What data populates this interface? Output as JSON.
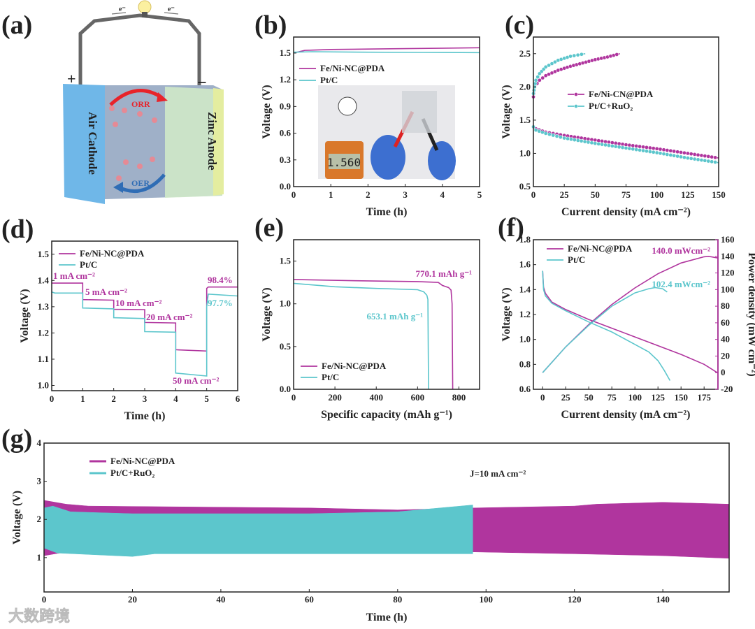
{
  "panel_labels": [
    "(a)",
    "(b)",
    "(c)",
    "(d)",
    "(e)",
    "(f)",
    "(g)"
  ],
  "diagram_a": {
    "cathode_label": "Air Cathode",
    "anode_label": "Zinc Anode",
    "orr_label": "ORR",
    "oer_label": "OER",
    "electron_label": "e⁻",
    "plus_label": "+",
    "minus_label": "−",
    "colors": {
      "cathode": "#6fb7e8",
      "anode": "#cfe9c8",
      "orr": "#e8232a",
      "oer": "#2f6db5"
    }
  },
  "inset_b": {
    "meter_reading": "1.560"
  },
  "watermark": "大数跨境",
  "colors": {
    "fe": "#b0359e",
    "pt": "#5cc6cc"
  },
  "chart_data": [
    {
      "id": "b",
      "type": "line",
      "xlabel": "Time (h)",
      "ylabel": "Voltage (V)",
      "xlim": [
        0,
        5
      ],
      "ylim": [
        0,
        1.68
      ],
      "xticks": [
        0,
        1,
        2,
        3,
        4,
        5
      ],
      "xtick_labels": [
        "0",
        "1",
        "2",
        "3",
        "4",
        "5"
      ],
      "yticks": [
        0,
        0.3,
        0.6,
        0.9,
        1.2,
        1.5
      ],
      "ytick_labels": [
        "0.0",
        "0.3",
        "0.6",
        "0.9",
        "1.2",
        "1.5"
      ],
      "legend": "upper-left",
      "series": [
        {
          "name": "Fe/Ni-NC@PDA",
          "color": "#b0359e",
          "points": [
            [
              0,
              1.5
            ],
            [
              0.3,
              1.53
            ],
            [
              1,
              1.54
            ],
            [
              2,
              1.545
            ],
            [
              3,
              1.55
            ],
            [
              5,
              1.56
            ]
          ]
        },
        {
          "name": "Pt/C",
          "color": "#5cc6cc",
          "points": [
            [
              0,
              1.51
            ],
            [
              0.5,
              1.515
            ],
            [
              2,
              1.51
            ],
            [
              3.5,
              1.507
            ],
            [
              5,
              1.505
            ]
          ]
        }
      ],
      "annotations": []
    },
    {
      "id": "c",
      "type": "line",
      "xlabel": "Current density (mA cm⁻²)",
      "ylabel": "Voltage (V)",
      "xlim": [
        0,
        150
      ],
      "ylim": [
        0.5,
        2.75
      ],
      "xticks": [
        0,
        25,
        50,
        75,
        100,
        125,
        150
      ],
      "xtick_labels": [
        "0",
        "25",
        "50",
        "75",
        "100",
        "125",
        "150"
      ],
      "yticks": [
        0.5,
        1.0,
        1.5,
        2.0,
        2.5
      ],
      "ytick_labels": [
        "0.5",
        "1.0",
        "1.5",
        "2.0",
        "2.5"
      ],
      "legend": "center",
      "markers": true,
      "series": [
        {
          "name": "Fe/Ni-CN@PDA",
          "color": "#b0359e",
          "segments": [
            [
              [
                0,
                1.85
              ],
              [
                1,
                2.0
              ],
              [
                5,
                2.1
              ],
              [
                10,
                2.17
              ],
              [
                20,
                2.25
              ],
              [
                30,
                2.31
              ],
              [
                40,
                2.36
              ],
              [
                50,
                2.41
              ],
              [
                60,
                2.45
              ],
              [
                70,
                2.5
              ]
            ],
            [
              [
                0,
                1.4
              ],
              [
                2,
                1.37
              ],
              [
                10,
                1.32
              ],
              [
                25,
                1.27
              ],
              [
                50,
                1.2
              ],
              [
                75,
                1.13
              ],
              [
                100,
                1.07
              ],
              [
                125,
                1.0
              ],
              [
                150,
                0.93
              ]
            ]
          ]
        },
        {
          "name": "Pt/C+RuO₂",
          "color": "#5cc6cc",
          "segments": [
            [
              [
                0,
                1.9
              ],
              [
                2,
                2.1
              ],
              [
                5,
                2.2
              ],
              [
                10,
                2.3
              ],
              [
                20,
                2.4
              ],
              [
                30,
                2.46
              ],
              [
                42,
                2.5
              ]
            ],
            [
              [
                0,
                1.4
              ],
              [
                2,
                1.35
              ],
              [
                10,
                1.3
              ],
              [
                25,
                1.23
              ],
              [
                50,
                1.15
              ],
              [
                75,
                1.08
              ],
              [
                100,
                1.01
              ],
              [
                125,
                0.93
              ],
              [
                150,
                0.86
              ]
            ]
          ]
        }
      ],
      "annotations": []
    },
    {
      "id": "d",
      "type": "line",
      "xlabel": "Time (h)",
      "ylabel": "Voltage (V)",
      "xlim": [
        0,
        6
      ],
      "ylim": [
        0.98,
        1.55
      ],
      "xticks": [
        0,
        1,
        2,
        3,
        4,
        5,
        6
      ],
      "xtick_labels": [
        "0",
        "1",
        "2",
        "3",
        "4",
        "5",
        "6"
      ],
      "yticks": [
        1.0,
        1.1,
        1.2,
        1.3,
        1.4,
        1.5
      ],
      "ytick_labels": [
        "1.0",
        "1.1",
        "1.2",
        "1.3",
        "1.4",
        "1.5"
      ],
      "legend": "upper-left",
      "series": [
        {
          "name": "Fe/Ni-NC@PDA",
          "color": "#b0359e",
          "points": [
            [
              0,
              1.39
            ],
            [
              1,
              1.39
            ],
            [
              1,
              1.327
            ],
            [
              2,
              1.325
            ],
            [
              2,
              1.29
            ],
            [
              3,
              1.289
            ],
            [
              3,
              1.24
            ],
            [
              4,
              1.238
            ],
            [
              4,
              1.136
            ],
            [
              5,
              1.131
            ],
            [
              5,
              1.37
            ],
            [
              5.05,
              1.375
            ],
            [
              6,
              1.375
            ]
          ]
        },
        {
          "name": "Pt/C",
          "color": "#5cc6cc",
          "points": [
            [
              0,
              1.356
            ],
            [
              0.1,
              1.352
            ],
            [
              1,
              1.352
            ],
            [
              1,
              1.295
            ],
            [
              2,
              1.292
            ],
            [
              2,
              1.258
            ],
            [
              3,
              1.255
            ],
            [
              3,
              1.205
            ],
            [
              4,
              1.203
            ],
            [
              4,
              1.047
            ],
            [
              5,
              1.036
            ],
            [
              5,
              1.3
            ],
            [
              5.05,
              1.348
            ],
            [
              6,
              1.341
            ]
          ]
        }
      ],
      "annotations": [
        {
          "text": "1 mA cm⁻²",
          "series": 0
        },
        {
          "text": "5 mA cm⁻²",
          "series": 0
        },
        {
          "text": "10 mA cm⁻²",
          "series": 0
        },
        {
          "text": "20 mA cm⁻²",
          "series": 0
        },
        {
          "text": "50 mA cm⁻²",
          "series": 0
        },
        {
          "text": "98.4%",
          "series": 0
        },
        {
          "text": "97.7%",
          "series": 1
        }
      ]
    },
    {
      "id": "e",
      "type": "line",
      "xlabel": "Specific capacity (mAh g⁻¹)",
      "ylabel": "Voltage (V)",
      "xlim": [
        0,
        900
      ],
      "ylim": [
        0,
        1.75
      ],
      "xticks": [
        0,
        200,
        400,
        600,
        800
      ],
      "xtick_labels": [
        "0",
        "200",
        "400",
        "600",
        "800"
      ],
      "yticks": [
        0,
        0.5,
        1.0,
        1.5
      ],
      "ytick_labels": [
        "0.0",
        "0.5",
        "1.0",
        "1.5"
      ],
      "legend": "lower-left",
      "series": [
        {
          "name": "Fe/Ni-NC@PDA",
          "color": "#b0359e",
          "points": [
            [
              0,
              1.285
            ],
            [
              300,
              1.27
            ],
            [
              600,
              1.26
            ],
            [
              700,
              1.25
            ],
            [
              720,
              1.215
            ],
            [
              750,
              1.19
            ],
            [
              762,
              1.16
            ],
            [
              767,
              1.0
            ],
            [
              770.1,
              0
            ]
          ]
        },
        {
          "name": "Pt/C",
          "color": "#5cc6cc",
          "points": [
            [
              0,
              1.24
            ],
            [
              200,
              1.2
            ],
            [
              400,
              1.18
            ],
            [
              600,
              1.165
            ],
            [
              630,
              1.14
            ],
            [
              645,
              1.1
            ],
            [
              650,
              1.05
            ],
            [
              653.1,
              0
            ]
          ]
        }
      ],
      "annotations": [
        {
          "text": "770.1 mAh g⁻¹",
          "series": 0
        },
        {
          "text": "653.1 mAh g⁻¹",
          "series": 1
        }
      ]
    },
    {
      "id": "f",
      "type": "line",
      "xlabel": "Current density (mA cm⁻²)",
      "ylabel": "Voltage (V)",
      "y2label": "Power density (mW cm⁻²)",
      "xlim": [
        -10,
        190
      ],
      "ylim": [
        0.6,
        1.8
      ],
      "y2lim": [
        -20,
        160
      ],
      "xticks": [
        0,
        25,
        50,
        75,
        100,
        125,
        150,
        175
      ],
      "xtick_labels": [
        "0",
        "25",
        "50",
        "75",
        "100",
        "125",
        "150",
        "175"
      ],
      "yticks": [
        0.6,
        0.8,
        1.0,
        1.2,
        1.4,
        1.6,
        1.8
      ],
      "ytick_labels": [
        "0.6",
        "0.8",
        "1.0",
        "1.2",
        "1.4",
        "1.6",
        "1.8"
      ],
      "y2ticks": [
        -20,
        0,
        20,
        40,
        60,
        80,
        100,
        120,
        140,
        160
      ],
      "y2tick_labels": [
        "-20",
        "0",
        "20",
        "40",
        "60",
        "80",
        "100",
        "120",
        "140",
        "160"
      ],
      "legend": "upper-left",
      "series": [
        {
          "name": "Fe/Ni-NC@PDA",
          "color": "#b0359e",
          "points": [
            [
              0,
              1.55
            ],
            [
              1,
              1.42
            ],
            [
              3,
              1.37
            ],
            [
              10,
              1.3
            ],
            [
              25,
              1.24
            ],
            [
              50,
              1.16
            ],
            [
              75,
              1.09
            ],
            [
              100,
              1.02
            ],
            [
              125,
              0.95
            ],
            [
              150,
              0.88
            ],
            [
              175,
              0.8
            ],
            [
              190,
              0.73
            ]
          ],
          "power": [
            [
              0,
              0
            ],
            [
              25,
              31
            ],
            [
              50,
              58
            ],
            [
              75,
              82
            ],
            [
              100,
              102
            ],
            [
              125,
              119
            ],
            [
              150,
              132
            ],
            [
              175,
              139.5
            ],
            [
              180,
              140
            ],
            [
              190,
              138
            ]
          ]
        },
        {
          "name": "Pt/C",
          "color": "#5cc6cc",
          "points": [
            [
              0,
              1.55
            ],
            [
              1,
              1.4
            ],
            [
              3,
              1.35
            ],
            [
              10,
              1.29
            ],
            [
              25,
              1.23
            ],
            [
              50,
              1.14
            ],
            [
              75,
              1.06
            ],
            [
              100,
              0.96
            ],
            [
              115,
              0.9
            ],
            [
              125,
              0.83
            ],
            [
              132,
              0.75
            ],
            [
              138,
              0.67
            ]
          ],
          "power": [
            [
              0,
              0
            ],
            [
              25,
              31
            ],
            [
              50,
              57
            ],
            [
              75,
              80
            ],
            [
              100,
              96
            ],
            [
              115,
              101
            ],
            [
              122,
              102.4
            ],
            [
              130,
              101
            ],
            [
              135,
              97
            ]
          ]
        }
      ],
      "annotations": [
        {
          "text": "140.0 mWcm⁻²",
          "series": 0
        },
        {
          "text": "102.4 mWcm⁻²",
          "series": 1
        }
      ]
    },
    {
      "id": "g",
      "type": "area",
      "xlabel": "Time (h)",
      "ylabel": "Voltage (V)",
      "xlim": [
        0,
        155
      ],
      "ylim": [
        0.1,
        4
      ],
      "xticks": [
        0,
        20,
        40,
        60,
        80,
        100,
        120,
        140
      ],
      "xtick_labels": [
        "0",
        "20",
        "40",
        "60",
        "80",
        "100",
        "120",
        "140"
      ],
      "yticks": [
        1,
        2,
        3,
        4
      ],
      "ytick_labels": [
        "1",
        "2",
        "3",
        "4"
      ],
      "legend": "upper-left",
      "series": [
        {
          "name": "Fe/Ni-NC@PDA",
          "color": "#b0359e",
          "upper": [
            [
              0,
              2.5
            ],
            [
              5,
              2.4
            ],
            [
              10,
              2.35
            ],
            [
              60,
              2.3
            ],
            [
              80,
              2.25
            ],
            [
              97,
              2.3
            ],
            [
              120,
              2.35
            ],
            [
              125,
              2.4
            ],
            [
              140,
              2.45
            ],
            [
              155,
              2.4
            ]
          ],
          "lower": [
            [
              0,
              1.05
            ],
            [
              5,
              1.15
            ],
            [
              60,
              1.15
            ],
            [
              97,
              1.15
            ],
            [
              120,
              1.1
            ],
            [
              140,
              1.05
            ],
            [
              155,
              0.98
            ]
          ]
        },
        {
          "name": "Pt/C+RuO₂",
          "color": "#5cc6cc",
          "upper": [
            [
              0,
              2.3
            ],
            [
              2,
              2.35
            ],
            [
              6,
              2.2
            ],
            [
              20,
              2.15
            ],
            [
              60,
              2.15
            ],
            [
              80,
              2.2
            ],
            [
              97,
              2.38
            ]
          ],
          "lower": [
            [
              0,
              1.25
            ],
            [
              3,
              1.12
            ],
            [
              20,
              1.03
            ],
            [
              25,
              1.1
            ],
            [
              97,
              1.1
            ]
          ]
        }
      ],
      "annotations": [
        {
          "text": "J=10 mA cm⁻²",
          "series": -1
        }
      ]
    }
  ]
}
